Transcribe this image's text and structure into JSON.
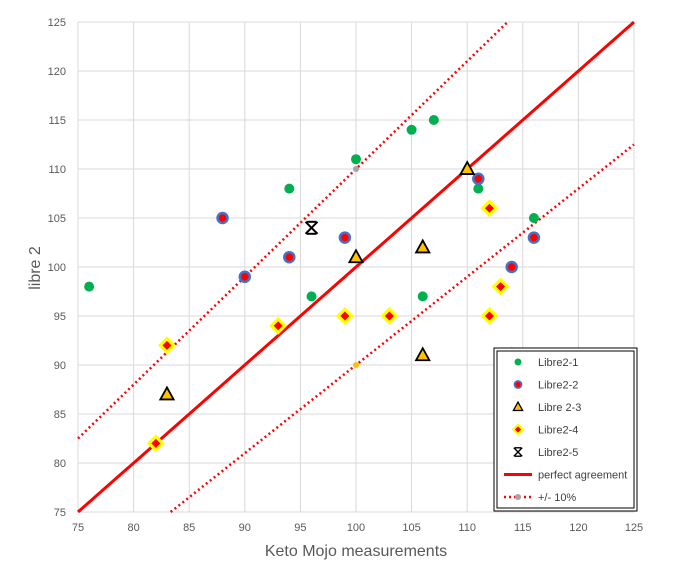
{
  "chart_data": {
    "type": "scatter",
    "title": "",
    "xlabel": "Keto Mojo measurements",
    "ylabel": "libre 2",
    "xlim": [
      75,
      125
    ],
    "ylim": [
      75,
      125
    ],
    "xticks": [
      75,
      80,
      85,
      90,
      95,
      100,
      105,
      110,
      115,
      120,
      125
    ],
    "yticks": [
      75,
      80,
      85,
      90,
      95,
      100,
      105,
      110,
      115,
      120,
      125
    ],
    "grid": true,
    "legend_position": "bottom-right",
    "series": [
      {
        "name": "Libre2-1",
        "marker": "circle",
        "color": "#00b050",
        "points": [
          [
            76,
            98
          ],
          [
            94,
            108
          ],
          [
            96,
            97
          ],
          [
            100,
            111
          ],
          [
            105,
            114
          ],
          [
            107,
            115
          ],
          [
            106,
            97
          ],
          [
            111,
            108
          ],
          [
            116,
            105
          ],
          [
            114.5,
            90.2
          ]
        ]
      },
      {
        "name": "Libre2-2",
        "marker": "circle-outlined",
        "color": "#ff0000",
        "edge": "#4472c4",
        "points": [
          [
            88,
            105
          ],
          [
            90,
            99
          ],
          [
            94,
            101
          ],
          [
            99,
            103
          ],
          [
            111,
            109
          ],
          [
            114,
            100
          ],
          [
            116,
            103
          ]
        ]
      },
      {
        "name": "Libre 2-3",
        "marker": "triangle",
        "color": "#ffc000",
        "edge": "#000000",
        "points": [
          [
            83,
            87
          ],
          [
            100,
            101
          ],
          [
            106,
            102
          ],
          [
            106,
            91
          ],
          [
            110,
            110
          ]
        ]
      },
      {
        "name": "Libre2-4",
        "marker": "diamond",
        "color": "#ffff00",
        "inner": "#ff0000",
        "points": [
          [
            82,
            82
          ],
          [
            83,
            92
          ],
          [
            93,
            94
          ],
          [
            99,
            95
          ],
          [
            103,
            95
          ],
          [
            112,
            95
          ],
          [
            112,
            106
          ],
          [
            113,
            98
          ],
          [
            114,
            91
          ]
        ]
      },
      {
        "name": "Libre2-5",
        "marker": "x-star",
        "color": "#000000",
        "points": [
          [
            96,
            104
          ]
        ]
      }
    ],
    "lines": [
      {
        "name": "perfect agreement",
        "style": "solid",
        "color": "#ff0000",
        "slope": 1.0
      },
      {
        "name": "+/- 10%",
        "style": "dotted",
        "color": "#ff0000",
        "slopes": [
          1.1,
          0.9
        ]
      }
    ],
    "extra_points": [
      {
        "x": 100,
        "y": 110,
        "color": "#a5a5a5"
      },
      {
        "x": 100,
        "y": 90,
        "color": "#ffc000"
      }
    ]
  }
}
